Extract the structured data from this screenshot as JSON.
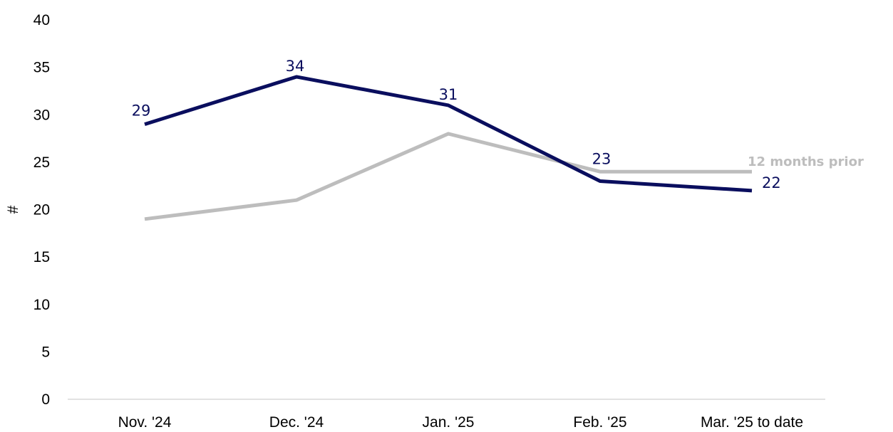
{
  "chart_data": {
    "type": "line",
    "categories": [
      "Nov. '24",
      "Dec. '24",
      "Jan. '25",
      "Feb. '25",
      "Mar. '25 to date"
    ],
    "series": [
      {
        "name": "",
        "values": [
          29,
          34,
          31,
          23,
          22
        ],
        "color": "#0a0e5e",
        "labels": [
          "29",
          "34",
          "31",
          "23",
          "22"
        ]
      },
      {
        "name": "12 months prior",
        "values": [
          19,
          21,
          28,
          24,
          24
        ],
        "color": "#bdbdbd"
      }
    ],
    "ylabel": "#",
    "ylim": [
      0,
      40
    ],
    "yticks": [
      "0",
      "5",
      "10",
      "15",
      "20",
      "25",
      "30",
      "35",
      "40"
    ],
    "grid": false
  }
}
